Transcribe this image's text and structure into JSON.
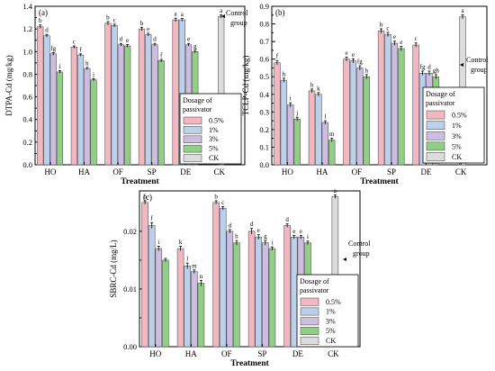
{
  "chart_data": [
    {
      "type": "bar",
      "panel_label": "(a)",
      "ylabel": "DTPA-Cd (mg/kg)",
      "xlabel": "Treatment",
      "categories": [
        "HO",
        "HA",
        "OF",
        "SP",
        "DE",
        "CK"
      ],
      "ylim": [
        0.0,
        1.4
      ],
      "yticks": [
        "0.0",
        "0.2",
        "0.4",
        "0.6",
        "0.8",
        "1.0",
        "1.2",
        "1.4"
      ],
      "series": [
        {
          "name": "0.5%",
          "color": "#f2b8c2",
          "values": [
            1.22,
            1.04,
            1.25,
            1.2,
            1.28,
            null
          ],
          "errors": [
            0.015,
            0.01,
            0.015,
            0.015,
            0.015,
            null
          ],
          "letters": [
            "b",
            "c",
            "b",
            "b",
            "a",
            null
          ]
        },
        {
          "name": "1%",
          "color": "#bcd0ec",
          "values": [
            1.14,
            0.97,
            1.23,
            1.15,
            1.28,
            null
          ],
          "errors": [
            0.012,
            0.01,
            0.012,
            0.012,
            0.012,
            null
          ],
          "letters": [
            "d",
            "f",
            "c",
            "e",
            "a",
            null
          ]
        },
        {
          "name": "3%",
          "color": "#cdbde0",
          "values": [
            0.98,
            0.85,
            1.06,
            1.06,
            1.06,
            null
          ],
          "errors": [
            0.012,
            0.01,
            0.012,
            0.012,
            0.012,
            null
          ],
          "letters": [
            "fg",
            "h",
            "d",
            "d",
            "e",
            null
          ]
        },
        {
          "name": "5%",
          "color": "#93ce87",
          "values": [
            0.82,
            0.75,
            1.05,
            0.92,
            1.0,
            null
          ],
          "errors": [
            0.012,
            0.01,
            0.012,
            0.012,
            0.012,
            null
          ],
          "letters": [
            "i",
            "j",
            "e",
            "f",
            "g",
            null
          ]
        },
        {
          "name": "CK",
          "color": "#dcdcdc",
          "values": [
            null,
            null,
            null,
            null,
            null,
            1.31
          ],
          "errors": [
            null,
            null,
            null,
            null,
            null,
            0.015
          ],
          "letters": [
            null,
            null,
            null,
            null,
            null,
            "a"
          ]
        }
      ],
      "annotation": [
        "Control",
        "group"
      ],
      "legend_title": [
        "Dosage of",
        "passivator"
      ],
      "legend_position": "lower-right"
    },
    {
      "type": "bar",
      "panel_label": "(b)",
      "ylabel": "TCLP-Cd (mg/kg)",
      "xlabel": "Treatment",
      "categories": [
        "HO",
        "HA",
        "OF",
        "SP",
        "DE",
        "CK"
      ],
      "ylim": [
        0.0,
        0.9
      ],
      "yticks": [
        "0.0",
        "0.1",
        "0.2",
        "0.3",
        "0.4",
        "0.5",
        "0.6",
        "0.7",
        "0.8",
        "0.9"
      ],
      "series": [
        {
          "name": "0.5%",
          "color": "#f2b8c2",
          "values": [
            0.58,
            0.42,
            0.6,
            0.76,
            0.68,
            null
          ],
          "errors": [
            0.012,
            0.01,
            0.012,
            0.012,
            0.012,
            null
          ],
          "letters": [
            "f",
            "h",
            "e",
            "b",
            "c",
            null
          ]
        },
        {
          "name": "1%",
          "color": "#bcd0ec",
          "values": [
            0.48,
            0.4,
            0.59,
            0.74,
            0.52,
            null
          ],
          "errors": [
            0.012,
            0.01,
            0.012,
            0.012,
            0.012,
            null
          ],
          "letters": [
            "h",
            "k",
            "e",
            "c",
            "fg",
            null
          ]
        },
        {
          "name": "3%",
          "color": "#cdbde0",
          "values": [
            0.34,
            0.24,
            0.55,
            0.69,
            0.52,
            null
          ],
          "errors": [
            0.012,
            0.01,
            0.012,
            0.012,
            0.012,
            null
          ],
          "letters": [
            "i",
            "l",
            "fg",
            "e",
            "d",
            null
          ]
        },
        {
          "name": "5%",
          "color": "#93ce87",
          "values": [
            0.26,
            0.14,
            0.5,
            0.66,
            0.5,
            null
          ],
          "errors": [
            0.01,
            0.01,
            0.012,
            0.012,
            0.012,
            null
          ],
          "letters": [
            "j",
            "m",
            "h",
            "e",
            "gh",
            null
          ]
        },
        {
          "name": "CK",
          "color": "#dcdcdc",
          "values": [
            null,
            null,
            null,
            null,
            null,
            0.84
          ],
          "errors": [
            null,
            null,
            null,
            null,
            null,
            0.012
          ],
          "letters": [
            null,
            null,
            null,
            null,
            null,
            "a"
          ]
        }
      ],
      "annotation": [
        "Control",
        "group"
      ],
      "legend_title": [
        "Dosage of",
        "passivator"
      ],
      "legend_position": "lower-right"
    },
    {
      "type": "bar",
      "panel_label": "(c)",
      "ylabel": "SBRC-Cd (mg/L)",
      "xlabel": "Treatment",
      "categories": [
        "HO",
        "HA",
        "OF",
        "SP",
        "DE",
        "CK"
      ],
      "ylim": [
        0.0,
        0.027
      ],
      "yticks": [
        "0.00",
        "0.01",
        "0.02"
      ],
      "ytick_values": [
        0.0,
        0.01,
        0.02
      ],
      "series": [
        {
          "name": "0.5%",
          "color": "#f2b8c2",
          "values": [
            0.025,
            0.017,
            0.025,
            0.02,
            0.021,
            null
          ],
          "errors": [
            0.0003,
            0.0004,
            0.0003,
            0.0005,
            0.0003,
            null
          ],
          "letters": [
            "b",
            "k",
            "b",
            "d",
            "d",
            null
          ]
        },
        {
          "name": "1%",
          "color": "#bcd0ec",
          "values": [
            0.021,
            0.014,
            0.024,
            0.019,
            0.019,
            null
          ],
          "errors": [
            0.0005,
            0.0005,
            0.0003,
            0.0004,
            0.0003,
            null
          ],
          "letters": [
            "f",
            "l",
            "c",
            "e",
            "e",
            null
          ]
        },
        {
          "name": "3%",
          "color": "#cdbde0",
          "values": [
            0.017,
            0.013,
            0.02,
            0.018,
            0.019,
            null
          ],
          "errors": [
            0.0004,
            0.0003,
            0.0003,
            0.0004,
            0.0003,
            null
          ],
          "letters": [
            "i",
            "m",
            "d",
            "g",
            "e",
            null
          ]
        },
        {
          "name": "5%",
          "color": "#93ce87",
          "values": [
            0.015,
            0.011,
            0.018,
            0.017,
            0.018,
            null
          ],
          "errors": [
            0.0003,
            0.0005,
            0.0004,
            0.0003,
            0.0003,
            null
          ],
          "letters": [
            null,
            "n",
            "h",
            "i",
            "i",
            null
          ]
        },
        {
          "name": "CK",
          "color": "#dcdcdc",
          "values": [
            null,
            null,
            null,
            null,
            null,
            0.026
          ],
          "errors": [
            null,
            null,
            null,
            null,
            null,
            0.0003
          ],
          "letters": [
            null,
            null,
            null,
            null,
            null,
            "a"
          ]
        }
      ],
      "annotation": [
        "Control",
        "group"
      ],
      "legend_title": [
        "Dosage of",
        "passivator"
      ],
      "legend_position": "lower-right"
    }
  ]
}
